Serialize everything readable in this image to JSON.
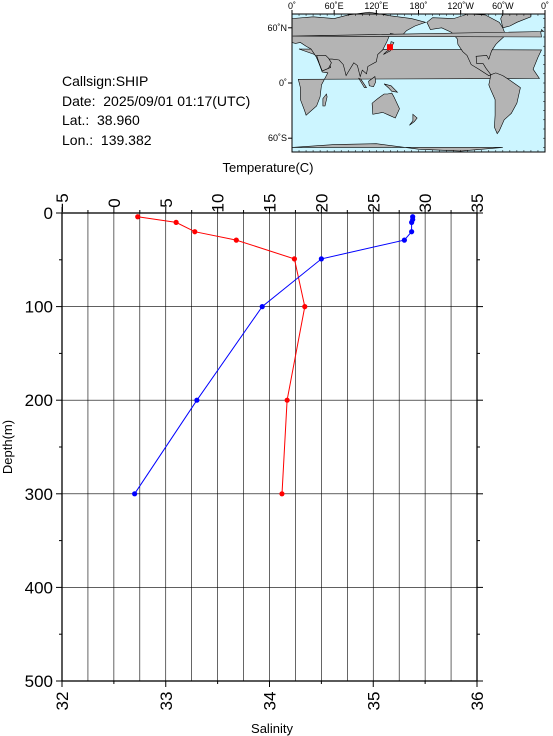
{
  "station": {
    "callsign": "Callsign:SHIP",
    "date": "Date:  2025/09/01 01:17(UTC)",
    "lat": "Lat.:  38.960",
    "lon": "Lon.:  139.382"
  },
  "map": {
    "top_ticks": [
      "0˚",
      "60˚E",
      "120˚E",
      "180˚",
      "120˚W",
      "60˚W",
      "0˚"
    ],
    "left_ticks": [
      "60˚N",
      "0˚",
      "60˚S"
    ],
    "ocean_color": "#ccf5ff",
    "land_color": "#b4b4b4",
    "marker_color": "#ff0000",
    "marker": {
      "lon": 139.382,
      "lat": 38.96
    }
  },
  "chart_data": {
    "type": "line",
    "title": "",
    "ylabel": "Depth(m)",
    "ylim": [
      0,
      500
    ],
    "y_reversed": true,
    "y_ticks": [
      "0",
      "100",
      "200",
      "300",
      "400",
      "500"
    ],
    "top_axis": {
      "label": "Temperature(C)",
      "lim": [
        -5,
        35
      ],
      "ticks": [
        "−5",
        "0",
        "5",
        "10",
        "15",
        "20",
        "25",
        "30",
        "35"
      ]
    },
    "bottom_axis": {
      "label": "Salinity",
      "lim": [
        32,
        36
      ],
      "ticks": [
        "32",
        "33",
        "34",
        "35",
        "36"
      ]
    },
    "grid": true,
    "series": [
      {
        "axis": "top",
        "color": "#ff0000",
        "x": [
          2.3,
          6.0,
          7.8,
          11.8,
          17.4,
          18.4,
          16.7,
          16.2
        ],
        "depth": [
          4,
          10,
          20,
          29,
          49,
          100,
          200,
          300
        ]
      },
      {
        "axis": "bottom",
        "color": "#0000ff",
        "x": [
          35.38,
          35.38,
          35.37,
          35.37,
          35.3,
          34.5,
          33.93,
          33.3,
          32.7
        ],
        "depth": [
          4,
          7,
          10,
          20,
          29,
          49,
          100,
          200,
          300
        ]
      }
    ]
  }
}
